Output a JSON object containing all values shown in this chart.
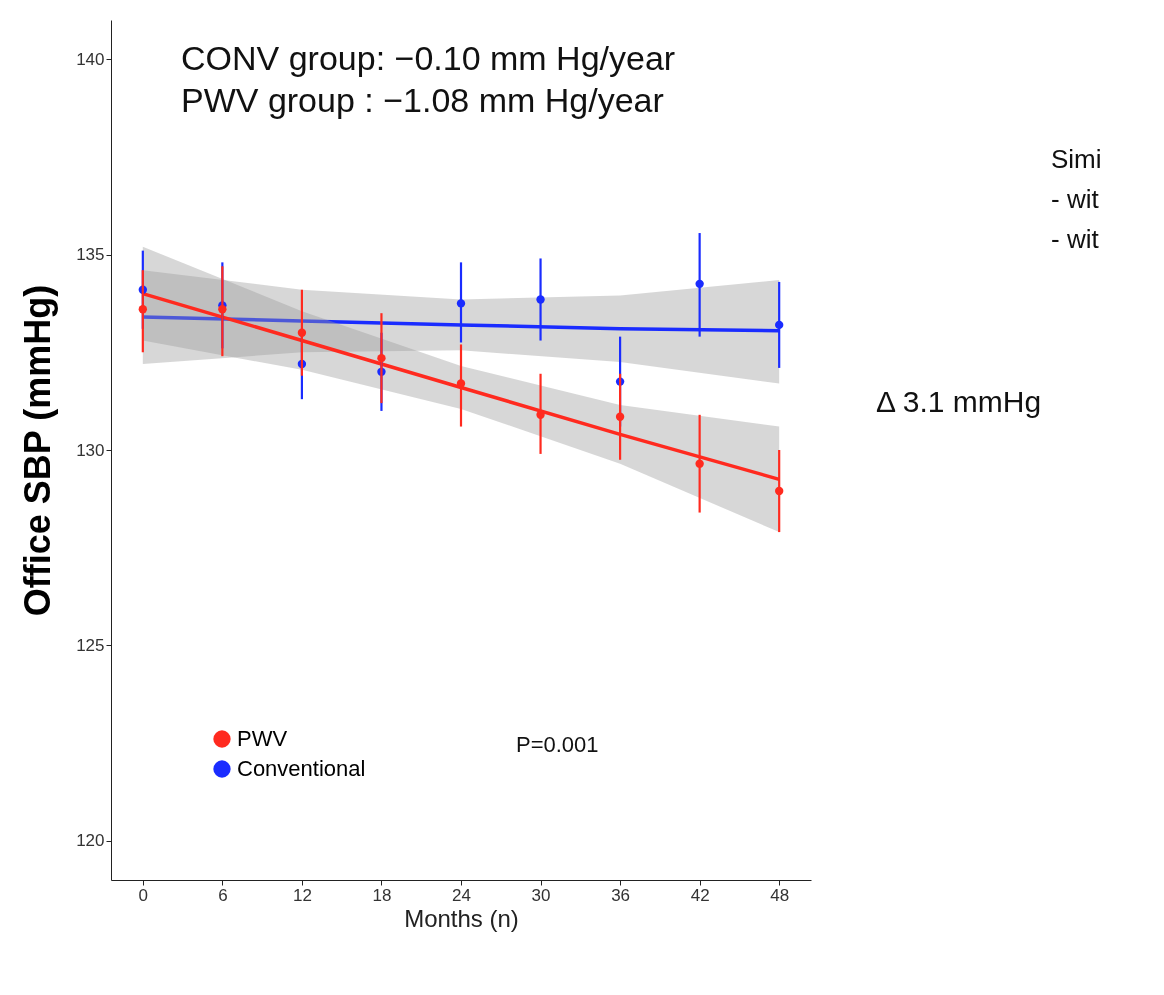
{
  "chart_data": {
    "type": "scatter",
    "xlabel": "Months (n)",
    "ylabel": "Office SBP (mmHg)",
    "xlim": [
      -2.4,
      50.4
    ],
    "ylim": [
      119,
      141
    ],
    "xticks": [
      0,
      6,
      12,
      18,
      24,
      30,
      36,
      42,
      48
    ],
    "yticks": [
      120,
      125,
      130,
      135,
      140
    ],
    "grid": false,
    "legend": "bottom left",
    "marker": "circle",
    "x": [
      0,
      6,
      12,
      18,
      24,
      30,
      36,
      42,
      48
    ],
    "series": [
      {
        "name": "PWV",
        "color": "#ff2a1f",
        "values": [
          133.6,
          133.6,
          133.0,
          132.35,
          131.7,
          130.9,
          130.85,
          129.65,
          128.95
        ],
        "errors": [
          [
            132.5,
            134.6
          ],
          [
            132.4,
            134.7
          ],
          [
            131.9,
            134.1
          ],
          [
            131.2,
            133.5
          ],
          [
            130.6,
            132.7
          ],
          [
            129.9,
            131.95
          ],
          [
            129.75,
            131.95
          ],
          [
            128.4,
            130.9
          ],
          [
            127.9,
            130.0
          ]
        ]
      },
      {
        "name": "Conventional",
        "color": "#1a2cff",
        "values": [
          134.1,
          133.7,
          132.2,
          132.0,
          133.75,
          133.85,
          131.75,
          134.25,
          133.2
        ],
        "errors": [
          [
            133.1,
            135.1
          ],
          [
            132.6,
            134.8
          ],
          [
            131.3,
            133.1
          ],
          [
            131.0,
            133.0
          ],
          [
            132.75,
            134.8
          ],
          [
            132.8,
            134.9
          ],
          [
            130.6,
            132.9
          ],
          [
            132.9,
            135.55
          ],
          [
            132.1,
            134.3
          ]
        ]
      },
      {
        "type": "line",
        "marker": "none",
        "color": "#ff2a1f",
        "x": [
          0,
          12,
          24,
          36,
          48
        ],
        "values": [
          134.0,
          132.8,
          131.6,
          130.4,
          129.25
        ],
        "lower": [
          132.8,
          132.05,
          131.05,
          129.65,
          127.9
        ],
        "upper": [
          135.2,
          133.55,
          132.15,
          131.15,
          130.6
        ]
      },
      {
        "type": "line",
        "marker": "none",
        "color": "#1a2cff",
        "x": [
          0,
          12,
          24,
          36,
          48
        ],
        "values": [
          133.4,
          133.3,
          133.2,
          133.1,
          133.05
        ],
        "lower": [
          132.2,
          132.5,
          132.55,
          132.25,
          131.7
        ],
        "upper": [
          134.6,
          134.1,
          133.85,
          133.95,
          134.35
        ]
      }
    ],
    "annotations": [
      "CONV group: −0.10 mm Hg/year",
      "PWV group  : −1.08 mm Hg/year",
      "P=0.001",
      "Δ 3.1 mmHg",
      "Simi",
      "- wit",
      "- wit"
    ]
  }
}
